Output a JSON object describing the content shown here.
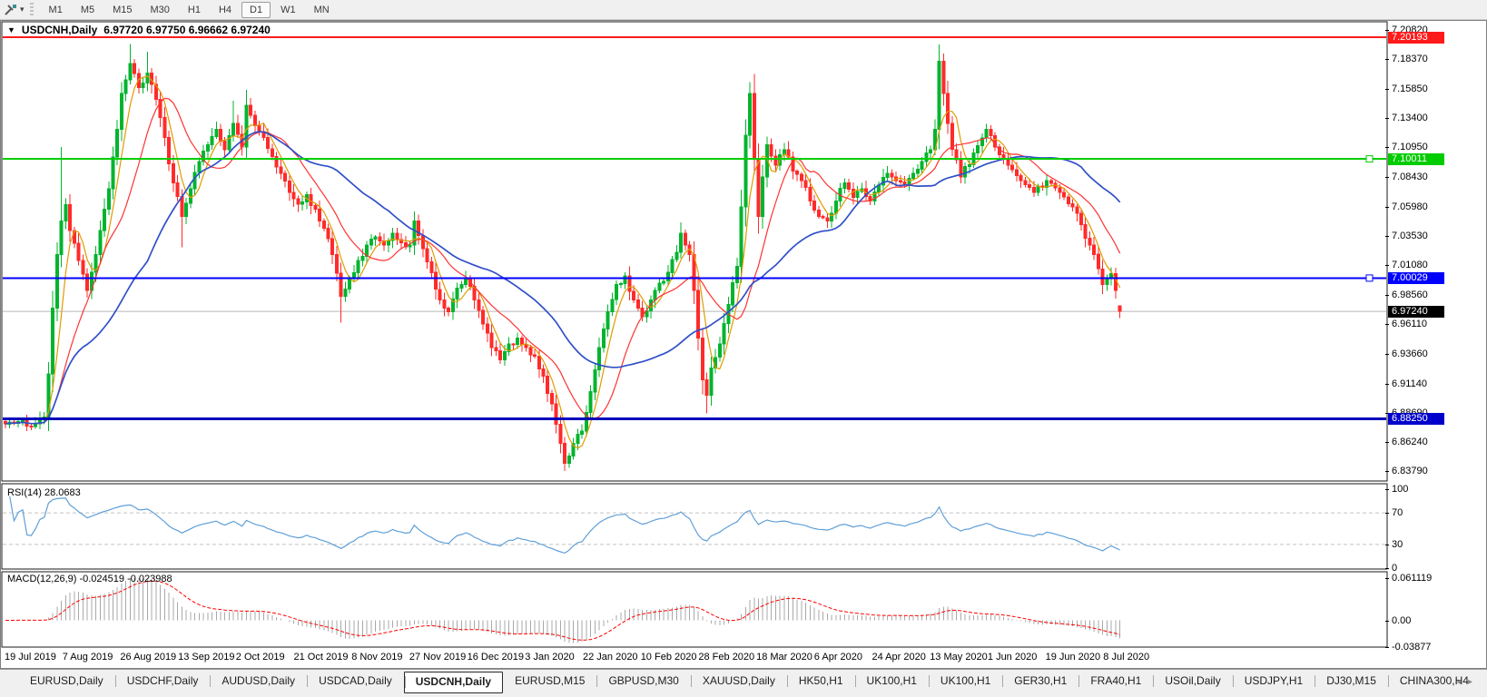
{
  "toolbar": {
    "timeframes": [
      "M1",
      "M5",
      "M15",
      "M30",
      "H1",
      "H4",
      "D1",
      "W1",
      "MN"
    ],
    "active_timeframe": "D1"
  },
  "chart_header": {
    "collapse_icon": "▼",
    "title": "USDCNH,Daily",
    "ohlc": "6.97720 6.97750 6.96662 6.97240"
  },
  "rsi_panel": {
    "label": "RSI(14) 28.0683",
    "axis": [
      {
        "label": "100",
        "value": 100
      },
      {
        "label": "70",
        "value": 70
      },
      {
        "label": "30",
        "value": 30
      },
      {
        "label": "0",
        "value": 0
      }
    ]
  },
  "macd_panel": {
    "label": "MACD(12,26,9) -0.024519 -0.023988",
    "axis": [
      {
        "label": "0.061119",
        "value": 0.061119
      },
      {
        "label": "0.00",
        "value": 0
      },
      {
        "label": "-0.03877",
        "value": -0.03877
      }
    ]
  },
  "tab_bar": {
    "tabs": [
      "EURUSD,Daily",
      "USDCHF,Daily",
      "AUDUSD,Daily",
      "USDCAD,Daily",
      "USDCNH,Daily",
      "EURUSD,M15",
      "GBPUSD,M30",
      "XAUUSD,Daily",
      "HK50,H1",
      "UK100,H1",
      "UK100,H1",
      "GER30,H1",
      "FRA40,H1",
      "USOil,Daily",
      "USDJPY,H1",
      "DJ30,M15",
      "CHINA300,H4"
    ],
    "active_tab": "USDCNH,Daily",
    "scroll_left_icon": "◂",
    "scroll_right_icon": "▸"
  },
  "colors": {
    "up_candle": "#00b42e",
    "down_candle": "#ff2a2a",
    "ma_fast": "#e09b00",
    "ma_mid": "#ff3333",
    "ma_slow": "#3050c8",
    "rsi_line": "#5f9fd8",
    "rsi_levels": "#c4c4c4",
    "macd_hist": "#a8a8a8",
    "macd_signal": "#ff0000",
    "panel_border": "#1a1a1a"
  },
  "chart_data": {
    "type": "candlestick",
    "symbol": "USDCNH",
    "timeframe": "Daily",
    "ohlc_current": {
      "open": 6.9772,
      "high": 6.9775,
      "low": 6.96662,
      "close": 6.9724
    },
    "y_range": [
      6.8379,
      7.2082
    ],
    "y_ticks": [
      {
        "label": "7.20820",
        "price": 7.2082
      },
      {
        "label": "7.18370",
        "price": 7.1837
      },
      {
        "label": "7.15850",
        "price": 7.1585
      },
      {
        "label": "7.13400",
        "price": 7.134
      },
      {
        "label": "7.10950",
        "price": 7.1095
      },
      {
        "label": "7.08430",
        "price": 7.0843
      },
      {
        "label": "7.05980",
        "price": 7.0598
      },
      {
        "label": "7.03530",
        "price": 7.0353
      },
      {
        "label": "7.01080",
        "price": 7.0108
      },
      {
        "label": "6.98560",
        "price": 6.9856
      },
      {
        "label": "6.96110",
        "price": 6.9611
      },
      {
        "label": "6.93660",
        "price": 6.9366
      },
      {
        "label": "6.91140",
        "price": 6.9114
      },
      {
        "label": "6.88690",
        "price": 6.8869
      },
      {
        "label": "6.86240",
        "price": 6.8624
      },
      {
        "label": "6.83790",
        "price": 6.8379
      }
    ],
    "price_tags": [
      {
        "label": "7.20193",
        "price": 7.20193,
        "bg": "#ff1a1a",
        "fg": "#ffffff"
      },
      {
        "label": "7.10011",
        "price": 7.10011,
        "bg": "#00cc00",
        "fg": "#ffffff"
      },
      {
        "label": "7.00029",
        "price": 7.00029,
        "bg": "#0000ff",
        "fg": "#ffffff"
      },
      {
        "label": "6.97240",
        "price": 6.9724,
        "bg": "#000000",
        "fg": "#ffffff"
      },
      {
        "label": "6.88250",
        "price": 6.8825,
        "bg": "#0000cc",
        "fg": "#ffffff"
      }
    ],
    "horizontal_lines": [
      {
        "price": 6.9724,
        "color": "#b8b8b8",
        "width": 1,
        "role": "current-price",
        "handle": false
      },
      {
        "price": 7.20193,
        "color": "#ff1a1a",
        "width": 2,
        "role": "resistance",
        "handle": false
      },
      {
        "price": 7.10011,
        "color": "#00cc00",
        "width": 2,
        "role": "level",
        "handle": true
      },
      {
        "price": 7.00029,
        "color": "#0000ff",
        "width": 2,
        "role": "level",
        "handle": true
      },
      {
        "price": 6.8825,
        "color": "#0000bb",
        "width": 3,
        "role": "support",
        "handle": false
      }
    ],
    "moving_averages": [
      {
        "period": 5,
        "color": "#e09b00",
        "width": 1.2
      },
      {
        "period": 13,
        "color": "#ff3333",
        "width": 1.2
      },
      {
        "period": 34,
        "color": "#3050c8",
        "width": 1.7
      }
    ],
    "indicators": [
      {
        "name": "RSI",
        "period": 14,
        "current": 28.0683,
        "levels": [
          70,
          30
        ]
      },
      {
        "name": "MACD",
        "fast": 12,
        "slow": 26,
        "signal": 9,
        "current_macd": -0.024519,
        "current_signal": -0.023988
      }
    ],
    "x_labels": [
      "19 Jul 2019",
      "7 Aug 2019",
      "26 Aug 2019",
      "13 Sep 2019",
      "2 Oct 2019",
      "21 Oct 2019",
      "8 Nov 2019",
      "27 Nov 2019",
      "16 Dec 2019",
      "3 Jan 2020",
      "22 Jan 2020",
      "10 Feb 2020",
      "28 Feb 2020",
      "18 Mar 2020",
      "6 Apr 2020",
      "24 Apr 2020",
      "13 May 2020",
      "1 Jun 2020",
      "19 Jun 2020",
      "8 Jul 2020"
    ],
    "bar_count": 260,
    "close_path_anchors": [
      [
        0,
        6.878
      ],
      [
        3,
        6.88
      ],
      [
        6,
        6.876
      ],
      [
        9,
        6.884
      ],
      [
        10,
        6.92
      ],
      [
        11,
        6.975
      ],
      [
        12,
        7.02
      ],
      [
        13,
        7.048
      ],
      [
        14,
        7.062
      ],
      [
        15,
        7.04
      ],
      [
        17,
        7.015
      ],
      [
        19,
        6.99
      ],
      [
        20,
        7.005
      ],
      [
        22,
        7.04
      ],
      [
        24,
        7.075
      ],
      [
        26,
        7.125
      ],
      [
        27,
        7.155
      ],
      [
        29,
        7.18
      ],
      [
        31,
        7.16
      ],
      [
        33,
        7.172
      ],
      [
        35,
        7.15
      ],
      [
        37,
        7.118
      ],
      [
        39,
        7.08
      ],
      [
        41,
        7.052
      ],
      [
        43,
        7.075
      ],
      [
        45,
        7.098
      ],
      [
        47,
        7.112
      ],
      [
        49,
        7.125
      ],
      [
        51,
        7.108
      ],
      [
        53,
        7.13
      ],
      [
        55,
        7.11
      ],
      [
        56,
        7.145
      ],
      [
        58,
        7.128
      ],
      [
        60,
        7.118
      ],
      [
        62,
        7.102
      ],
      [
        64,
        7.088
      ],
      [
        66,
        7.072
      ],
      [
        68,
        7.062
      ],
      [
        70,
        7.07
      ],
      [
        72,
        7.058
      ],
      [
        74,
        7.042
      ],
      [
        76,
        7.02
      ],
      [
        78,
        6.985
      ],
      [
        80,
        7.0
      ],
      [
        82,
        7.015
      ],
      [
        84,
        7.028
      ],
      [
        86,
        7.035
      ],
      [
        88,
        7.028
      ],
      [
        90,
        7.038
      ],
      [
        92,
        7.03
      ],
      [
        94,
        7.028
      ],
      [
        95,
        7.048
      ],
      [
        97,
        7.025
      ],
      [
        99,
        7.005
      ],
      [
        101,
        6.982
      ],
      [
        103,
        6.972
      ],
      [
        105,
        6.992
      ],
      [
        107,
        7.0
      ],
      [
        109,
        6.982
      ],
      [
        111,
        6.962
      ],
      [
        113,
        6.942
      ],
      [
        115,
        6.932
      ],
      [
        117,
        6.945
      ],
      [
        119,
        6.95
      ],
      [
        121,
        6.942
      ],
      [
        123,
        6.935
      ],
      [
        125,
        6.918
      ],
      [
        127,
        6.895
      ],
      [
        129,
        6.862
      ],
      [
        130,
        6.845
      ],
      [
        132,
        6.862
      ],
      [
        134,
        6.872
      ],
      [
        136,
        6.905
      ],
      [
        138,
        6.942
      ],
      [
        140,
        6.972
      ],
      [
        142,
        6.995
      ],
      [
        144,
        7.002
      ],
      [
        146,
        6.982
      ],
      [
        148,
        6.968
      ],
      [
        150,
        6.982
      ],
      [
        152,
        6.996
      ],
      [
        154,
        7.005
      ],
      [
        156,
        7.022
      ],
      [
        157,
        7.038
      ],
      [
        159,
        7.02
      ],
      [
        160,
        6.99
      ],
      [
        161,
        6.95
      ],
      [
        162,
        6.915
      ],
      [
        163,
        6.902
      ],
      [
        164,
        6.925
      ],
      [
        166,
        6.945
      ],
      [
        168,
        6.978
      ],
      [
        170,
        7.01
      ],
      [
        171,
        7.06
      ],
      [
        172,
        7.12
      ],
      [
        173,
        7.155
      ],
      [
        174,
        7.1
      ],
      [
        175,
        7.052
      ],
      [
        176,
        7.085
      ],
      [
        177,
        7.112
      ],
      [
        179,
        7.095
      ],
      [
        181,
        7.108
      ],
      [
        183,
        7.09
      ],
      [
        185,
        7.082
      ],
      [
        187,
        7.065
      ],
      [
        189,
        7.052
      ],
      [
        191,
        7.048
      ],
      [
        193,
        7.065
      ],
      [
        195,
        7.08
      ],
      [
        197,
        7.068
      ],
      [
        199,
        7.075
      ],
      [
        201,
        7.065
      ],
      [
        203,
        7.078
      ],
      [
        205,
        7.088
      ],
      [
        207,
        7.082
      ],
      [
        209,
        7.078
      ],
      [
        211,
        7.088
      ],
      [
        213,
        7.098
      ],
      [
        215,
        7.108
      ],
      [
        216,
        7.125
      ],
      [
        217,
        7.182
      ],
      [
        218,
        7.155
      ],
      [
        219,
        7.13
      ],
      [
        220,
        7.108
      ],
      [
        222,
        7.085
      ],
      [
        225,
        7.105
      ],
      [
        228,
        7.125
      ],
      [
        230,
        7.11
      ],
      [
        233,
        7.095
      ],
      [
        236,
        7.082
      ],
      [
        239,
        7.072
      ],
      [
        242,
        7.082
      ],
      [
        245,
        7.072
      ],
      [
        248,
        7.06
      ],
      [
        250,
        7.045
      ],
      [
        252,
        7.028
      ],
      [
        254,
        7.008
      ],
      [
        255,
        6.995
      ],
      [
        256,
        7.0
      ],
      [
        257,
        7.004
      ],
      [
        258,
        6.99
      ],
      [
        259,
        6.9724
      ]
    ],
    "wick_overrides": [
      {
        "i": 13,
        "high": 7.11
      },
      {
        "i": 29,
        "high": 7.1965
      },
      {
        "i": 33,
        "high": 7.19
      },
      {
        "i": 41,
        "low": 7.026
      },
      {
        "i": 53,
        "high": 7.149
      },
      {
        "i": 56,
        "high": 7.158
      },
      {
        "i": 78,
        "low": 6.963
      },
      {
        "i": 95,
        "high": 7.056
      },
      {
        "i": 130,
        "low": 6.8385
      },
      {
        "i": 163,
        "low": 6.887
      },
      {
        "i": 173,
        "high": 7.1645
      },
      {
        "i": 217,
        "high": 7.196
      },
      {
        "i": 259,
        "open": 6.9772,
        "high": 6.9775,
        "low": 6.9666,
        "close": 6.9724
      }
    ]
  }
}
